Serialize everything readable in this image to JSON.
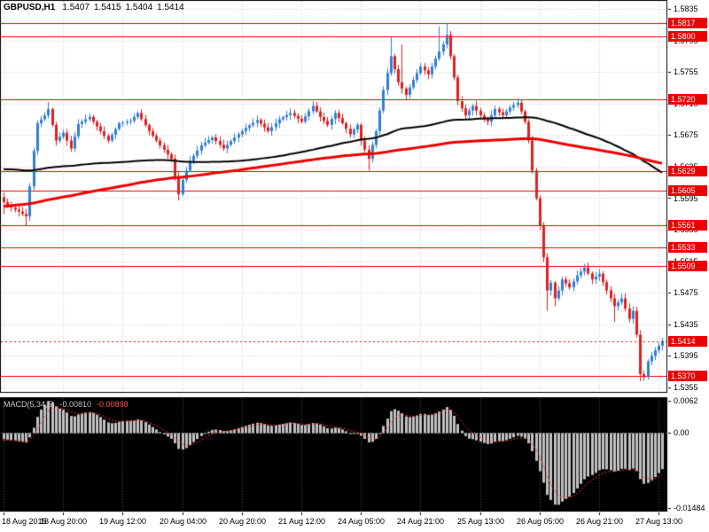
{
  "header": {
    "symbol": "GBPUSD,H1",
    "open": "1.5407",
    "high": "1.5415",
    "low": "1.5404",
    "close": "1.5414"
  },
  "chart_data": {
    "type": "candlestick",
    "symbol": "GBPUSD",
    "timeframe": "H1",
    "total_bars": 178,
    "bars_per_label": 16,
    "first_open": 1.5596,
    "x_labels": [
      "18 Aug 2015",
      "18 Aug 20:00",
      "19 Aug 12:00",
      "20 Aug 04:00",
      "20 Aug 20:00",
      "21 Aug 12:00",
      "24 Aug 05:00",
      "24 Aug 21:00",
      "25 Aug 13:00",
      "26 Aug 05:00",
      "26 Aug 21:00",
      "27 Aug 13:00"
    ],
    "y_axis": {
      "min": 1.5355,
      "max": 1.5835,
      "step": 0.004,
      "ticks": [
        "1.5835",
        "1.5795",
        "1.5755",
        "1.5715",
        "1.5675",
        "1.5635",
        "1.5595",
        "1.5555",
        "1.5515",
        "1.5475",
        "1.5435",
        "1.5395",
        "1.5355"
      ]
    },
    "hlines": [
      1.5817,
      1.58,
      1.572,
      1.5629,
      1.5605,
      1.5561,
      1.5533,
      1.5509,
      1.537
    ],
    "current_price": 1.5414,
    "price_keypoints": [
      [
        0,
        1.559
      ],
      [
        2,
        1.5583
      ],
      [
        4,
        1.5578
      ],
      [
        6,
        1.5572
      ],
      [
        7,
        1.561
      ],
      [
        8,
        1.5655
      ],
      [
        9,
        1.569
      ],
      [
        11,
        1.57
      ],
      [
        12,
        1.5708
      ],
      [
        14,
        1.5668
      ],
      [
        16,
        1.5678
      ],
      [
        18,
        1.5658
      ],
      [
        20,
        1.5689
      ],
      [
        23,
        1.5698
      ],
      [
        26,
        1.568
      ],
      [
        28,
        1.5668
      ],
      [
        31,
        1.569
      ],
      [
        34,
        1.5693
      ],
      [
        36,
        1.5703
      ],
      [
        39,
        1.568
      ],
      [
        42,
        1.5662
      ],
      [
        45,
        1.5645
      ],
      [
        47,
        1.56
      ],
      [
        48,
        1.5618
      ],
      [
        50,
        1.5642
      ],
      [
        53,
        1.5662
      ],
      [
        56,
        1.5672
      ],
      [
        59,
        1.5658
      ],
      [
        62,
        1.5672
      ],
      [
        65,
        1.5684
      ],
      [
        68,
        1.5694
      ],
      [
        71,
        1.568
      ],
      [
        74,
        1.5695
      ],
      [
        77,
        1.5703
      ],
      [
        80,
        1.5692
      ],
      [
        83,
        1.5712
      ],
      [
        85,
        1.5698
      ],
      [
        87,
        1.5688
      ],
      [
        89,
        1.5703
      ],
      [
        91,
        1.569
      ],
      [
        93,
        1.5676
      ],
      [
        95,
        1.5688
      ],
      [
        96,
        1.5668
      ],
      [
        98,
        1.5645
      ],
      [
        100,
        1.568
      ],
      [
        102,
        1.5732
      ],
      [
        104,
        1.5775
      ],
      [
        106,
        1.5742
      ],
      [
        108,
        1.5726
      ],
      [
        110,
        1.5745
      ],
      [
        112,
        1.5762
      ],
      [
        114,
        1.5752
      ],
      [
        116,
        1.5772
      ],
      [
        118,
        1.579
      ],
      [
        119,
        1.5802
      ],
      [
        120,
        1.5775
      ],
      [
        121,
        1.5748
      ],
      [
        122,
        1.5718
      ],
      [
        124,
        1.57
      ],
      [
        126,
        1.5712
      ],
      [
        128,
        1.57
      ],
      [
        130,
        1.5692
      ],
      [
        132,
        1.5708
      ],
      [
        134,
        1.57
      ],
      [
        136,
        1.571
      ],
      [
        138,
        1.5716
      ],
      [
        139,
        1.5705
      ],
      [
        140,
        1.5692
      ],
      [
        141,
        1.5668
      ],
      [
        142,
        1.563
      ],
      [
        143,
        1.5595
      ],
      [
        144,
        1.556
      ],
      [
        145,
        1.552
      ],
      [
        146,
        1.5478
      ],
      [
        147,
        1.5488
      ],
      [
        148,
        1.5468
      ],
      [
        149,
        1.5478
      ],
      [
        150,
        1.5492
      ],
      [
        152,
        1.5482
      ],
      [
        154,
        1.5497
      ],
      [
        156,
        1.5507
      ],
      [
        158,
        1.5492
      ],
      [
        160,
        1.5499
      ],
      [
        162,
        1.5478
      ],
      [
        164,
        1.5458
      ],
      [
        166,
        1.5468
      ],
      [
        168,
        1.5442
      ],
      [
        169,
        1.5452
      ],
      [
        170,
        1.5422
      ],
      [
        171,
        1.5372
      ],
      [
        172,
        1.5368
      ],
      [
        173,
        1.5388
      ],
      [
        175,
        1.5402
      ],
      [
        176,
        1.5408
      ],
      [
        177,
        1.5414
      ]
    ],
    "spikes": {
      "highs": [
        [
          12,
          1.5717
        ],
        [
          83,
          1.5718
        ],
        [
          104,
          1.5799
        ],
        [
          107,
          1.579
        ],
        [
          117,
          1.5813
        ],
        [
          119,
          1.5817
        ],
        [
          138,
          1.5722
        ],
        [
          156,
          1.5512
        ]
      ],
      "lows": [
        [
          0,
          1.5575
        ],
        [
          6,
          1.556
        ],
        [
          47,
          1.5592
        ],
        [
          98,
          1.563
        ],
        [
          146,
          1.5452
        ],
        [
          148,
          1.5458
        ],
        [
          164,
          1.5438
        ],
        [
          171,
          1.5363
        ],
        [
          172,
          1.5365
        ]
      ]
    },
    "ma": {
      "black_period": 100,
      "red_period": 200,
      "pre_history_bars": 200,
      "pre_history_keypoints": [
        [
          -200,
          1.548
        ],
        [
          -160,
          1.5525
        ],
        [
          -120,
          1.5568
        ],
        [
          -95,
          1.561
        ],
        [
          -70,
          1.566
        ],
        [
          -45,
          1.5662
        ],
        [
          -25,
          1.5618
        ],
        [
          -10,
          1.5588
        ],
        [
          -1,
          1.5594
        ]
      ]
    },
    "macd": {
      "label": "MACD(5,34,5)",
      "main_value": "-0.00810",
      "signal_value": "-0.00898",
      "fast": 5,
      "slow": 34,
      "signal": 5,
      "y_min": -0.01484,
      "y_max": 0.0062,
      "ticks": [
        {
          "label": "0.0062",
          "value": 0.0062
        },
        {
          "label": "0.00",
          "value": 0
        },
        {
          "label": "-0.01484",
          "value": -0.01484
        }
      ]
    },
    "colors": {
      "background": "#ffffff",
      "bull": "#2f7ed8",
      "bear": "#e02020",
      "levels": "#ee0000",
      "ma_black": "#000000",
      "ma_red": "#ee0000",
      "grid": "#cccccc",
      "macd_bg": "#000000",
      "macd_hist": "#c0c0c0",
      "macd_signal": "#ff3030",
      "macd_grid": "#555555",
      "macd_zero": "#909090",
      "flag_text": "#ffffff"
    }
  }
}
